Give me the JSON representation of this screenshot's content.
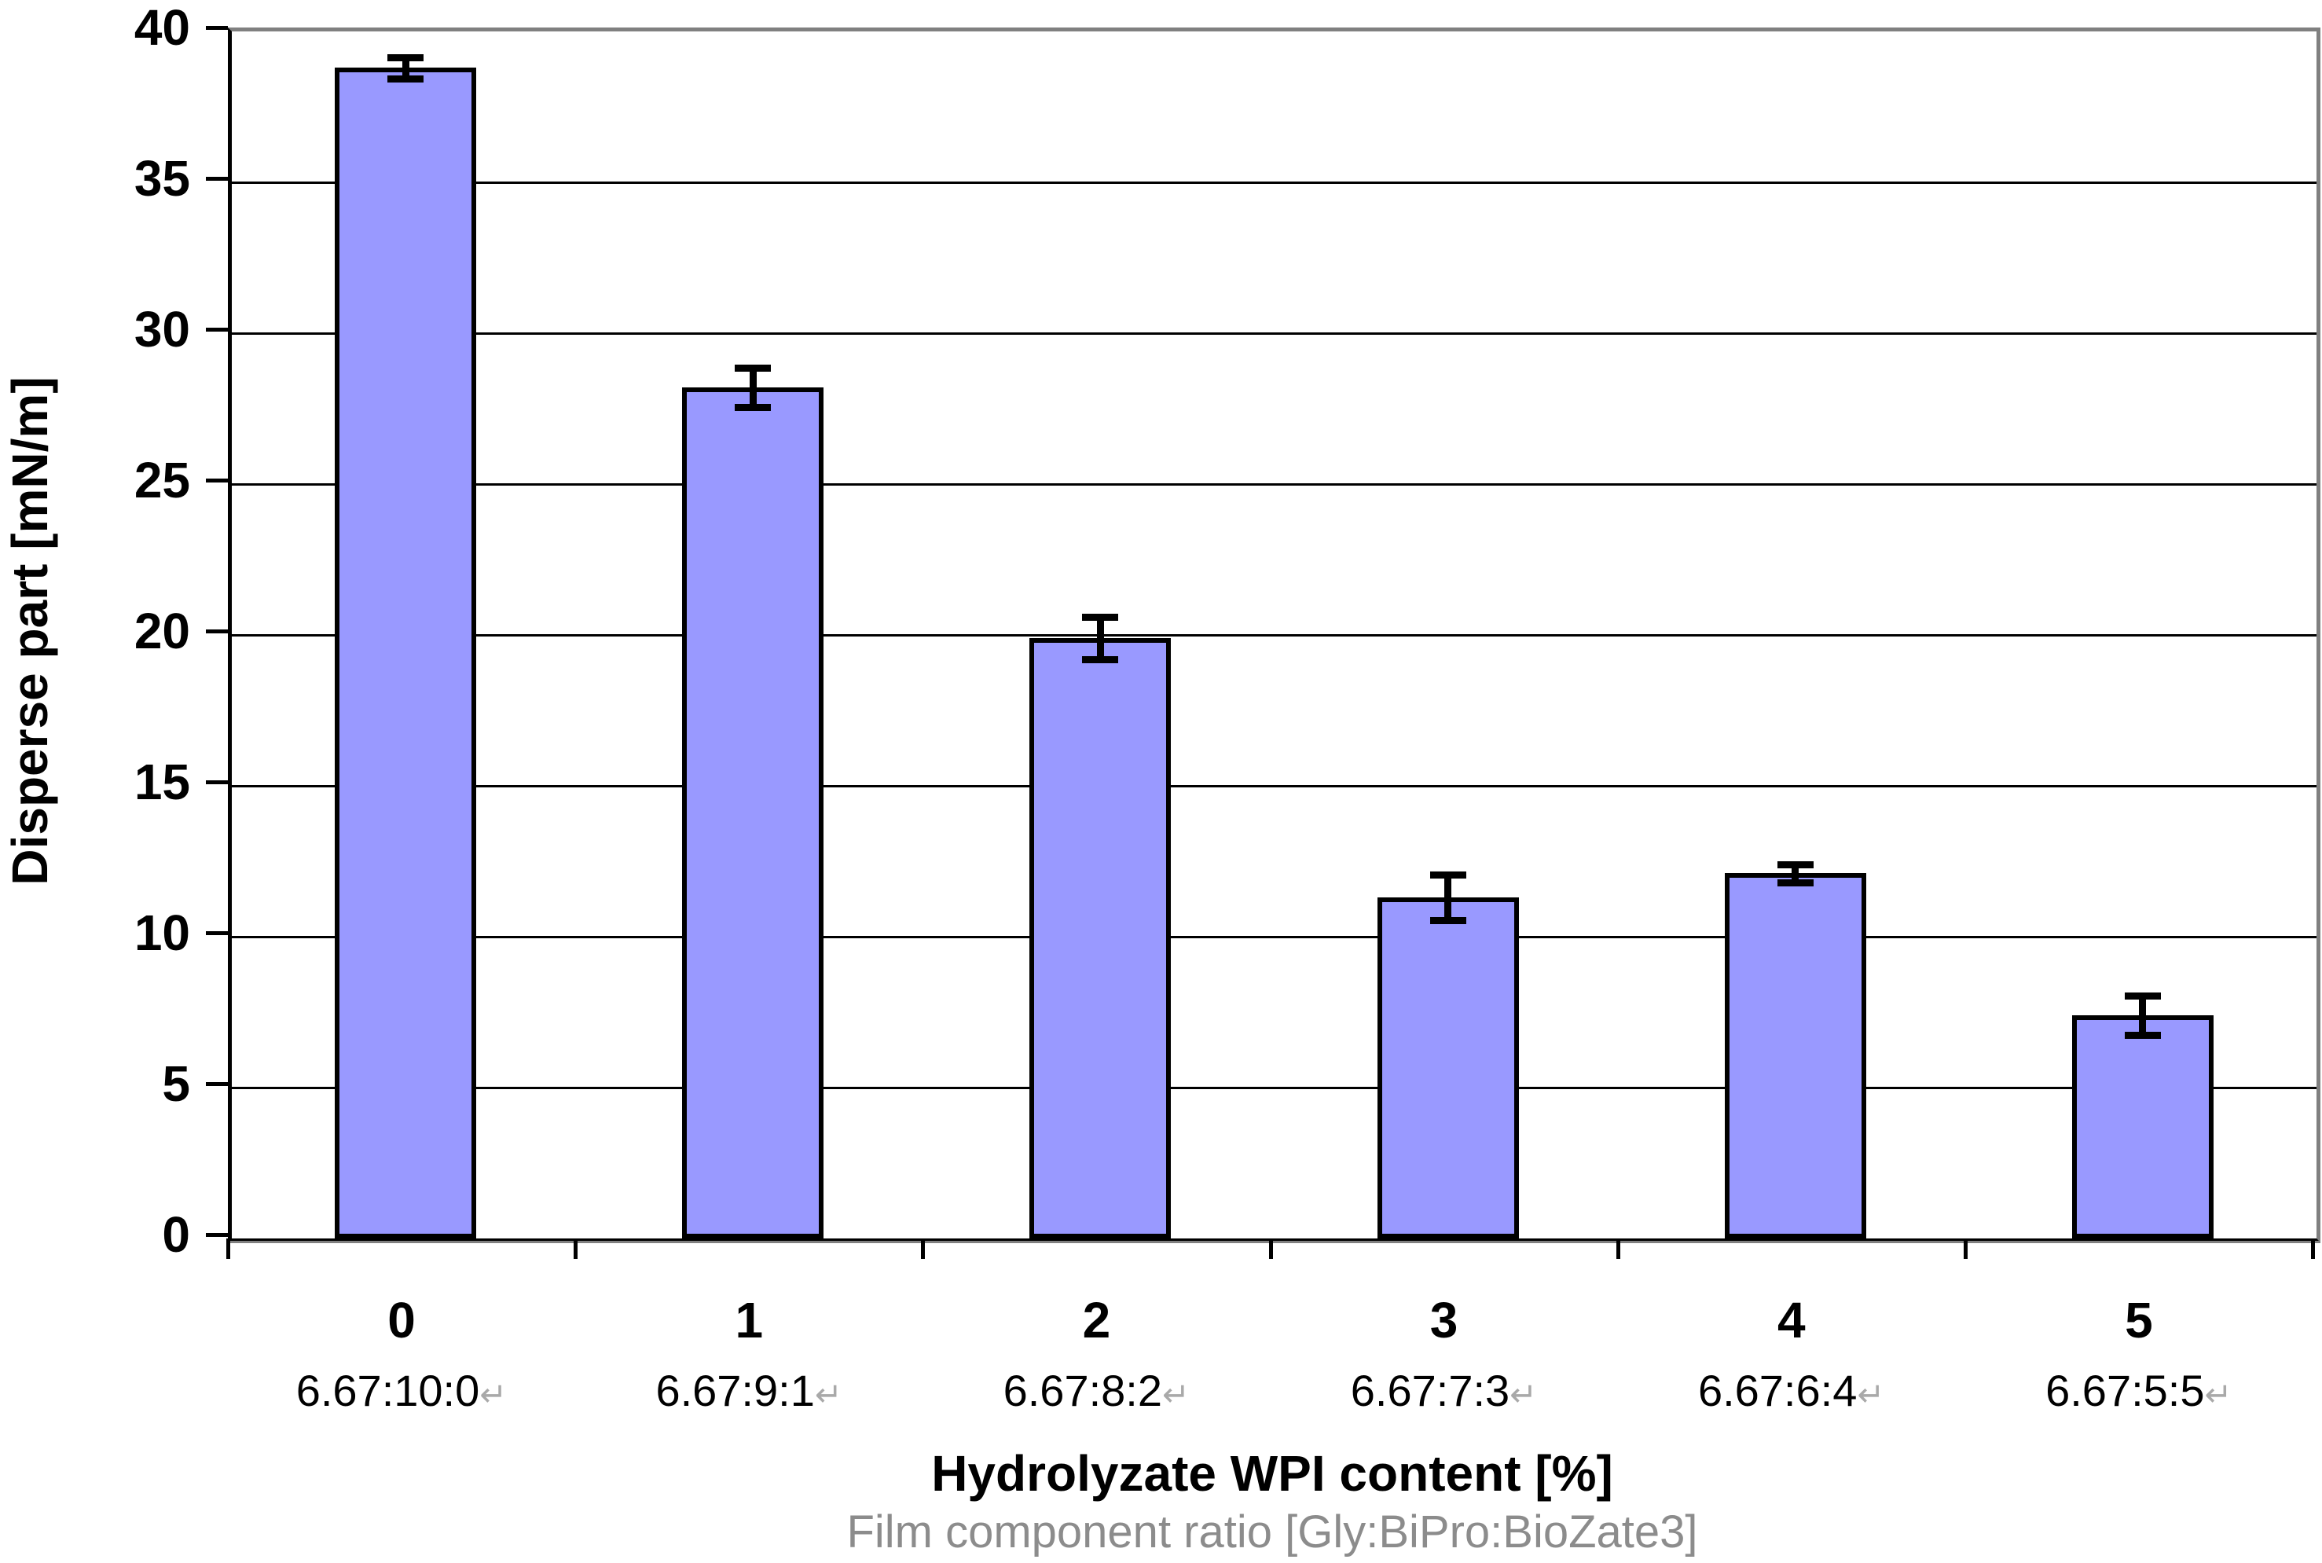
{
  "chart_data": {
    "type": "bar",
    "title": "",
    "categories": [
      "0",
      "1",
      "2",
      "3",
      "4",
      "5"
    ],
    "category_sublabels": [
      "6.67:10:0",
      "6.67:9:1",
      "6.67:8:2",
      "6.67:7:3",
      "6.67:6:4",
      "6.67:5:5"
    ],
    "values": [
      38.8,
      28.2,
      19.9,
      11.3,
      12.1,
      7.4
    ],
    "error_bars": [
      0.35,
      0.65,
      0.7,
      0.75,
      0.3,
      0.65
    ],
    "xlabel": "Hydrolyzate WPI content [%]",
    "xlabel_secondary": "Film component ratio [Gly:BiPro:BioZate3]",
    "ylabel": "Disperse part [mN/m]",
    "ylim": [
      0,
      40
    ],
    "ytick_step": 5,
    "yticks": [
      0,
      5,
      10,
      15,
      20,
      25,
      30,
      35,
      40
    ],
    "grid": true,
    "legend": false,
    "bar_color": "#9999FF",
    "bar_border_color": "#000000",
    "gridline_color": "#000000",
    "plot_border_color": "#808080",
    "secondary_label_color": "#8C8C8C",
    "sublabel_return_mark": "↵"
  }
}
